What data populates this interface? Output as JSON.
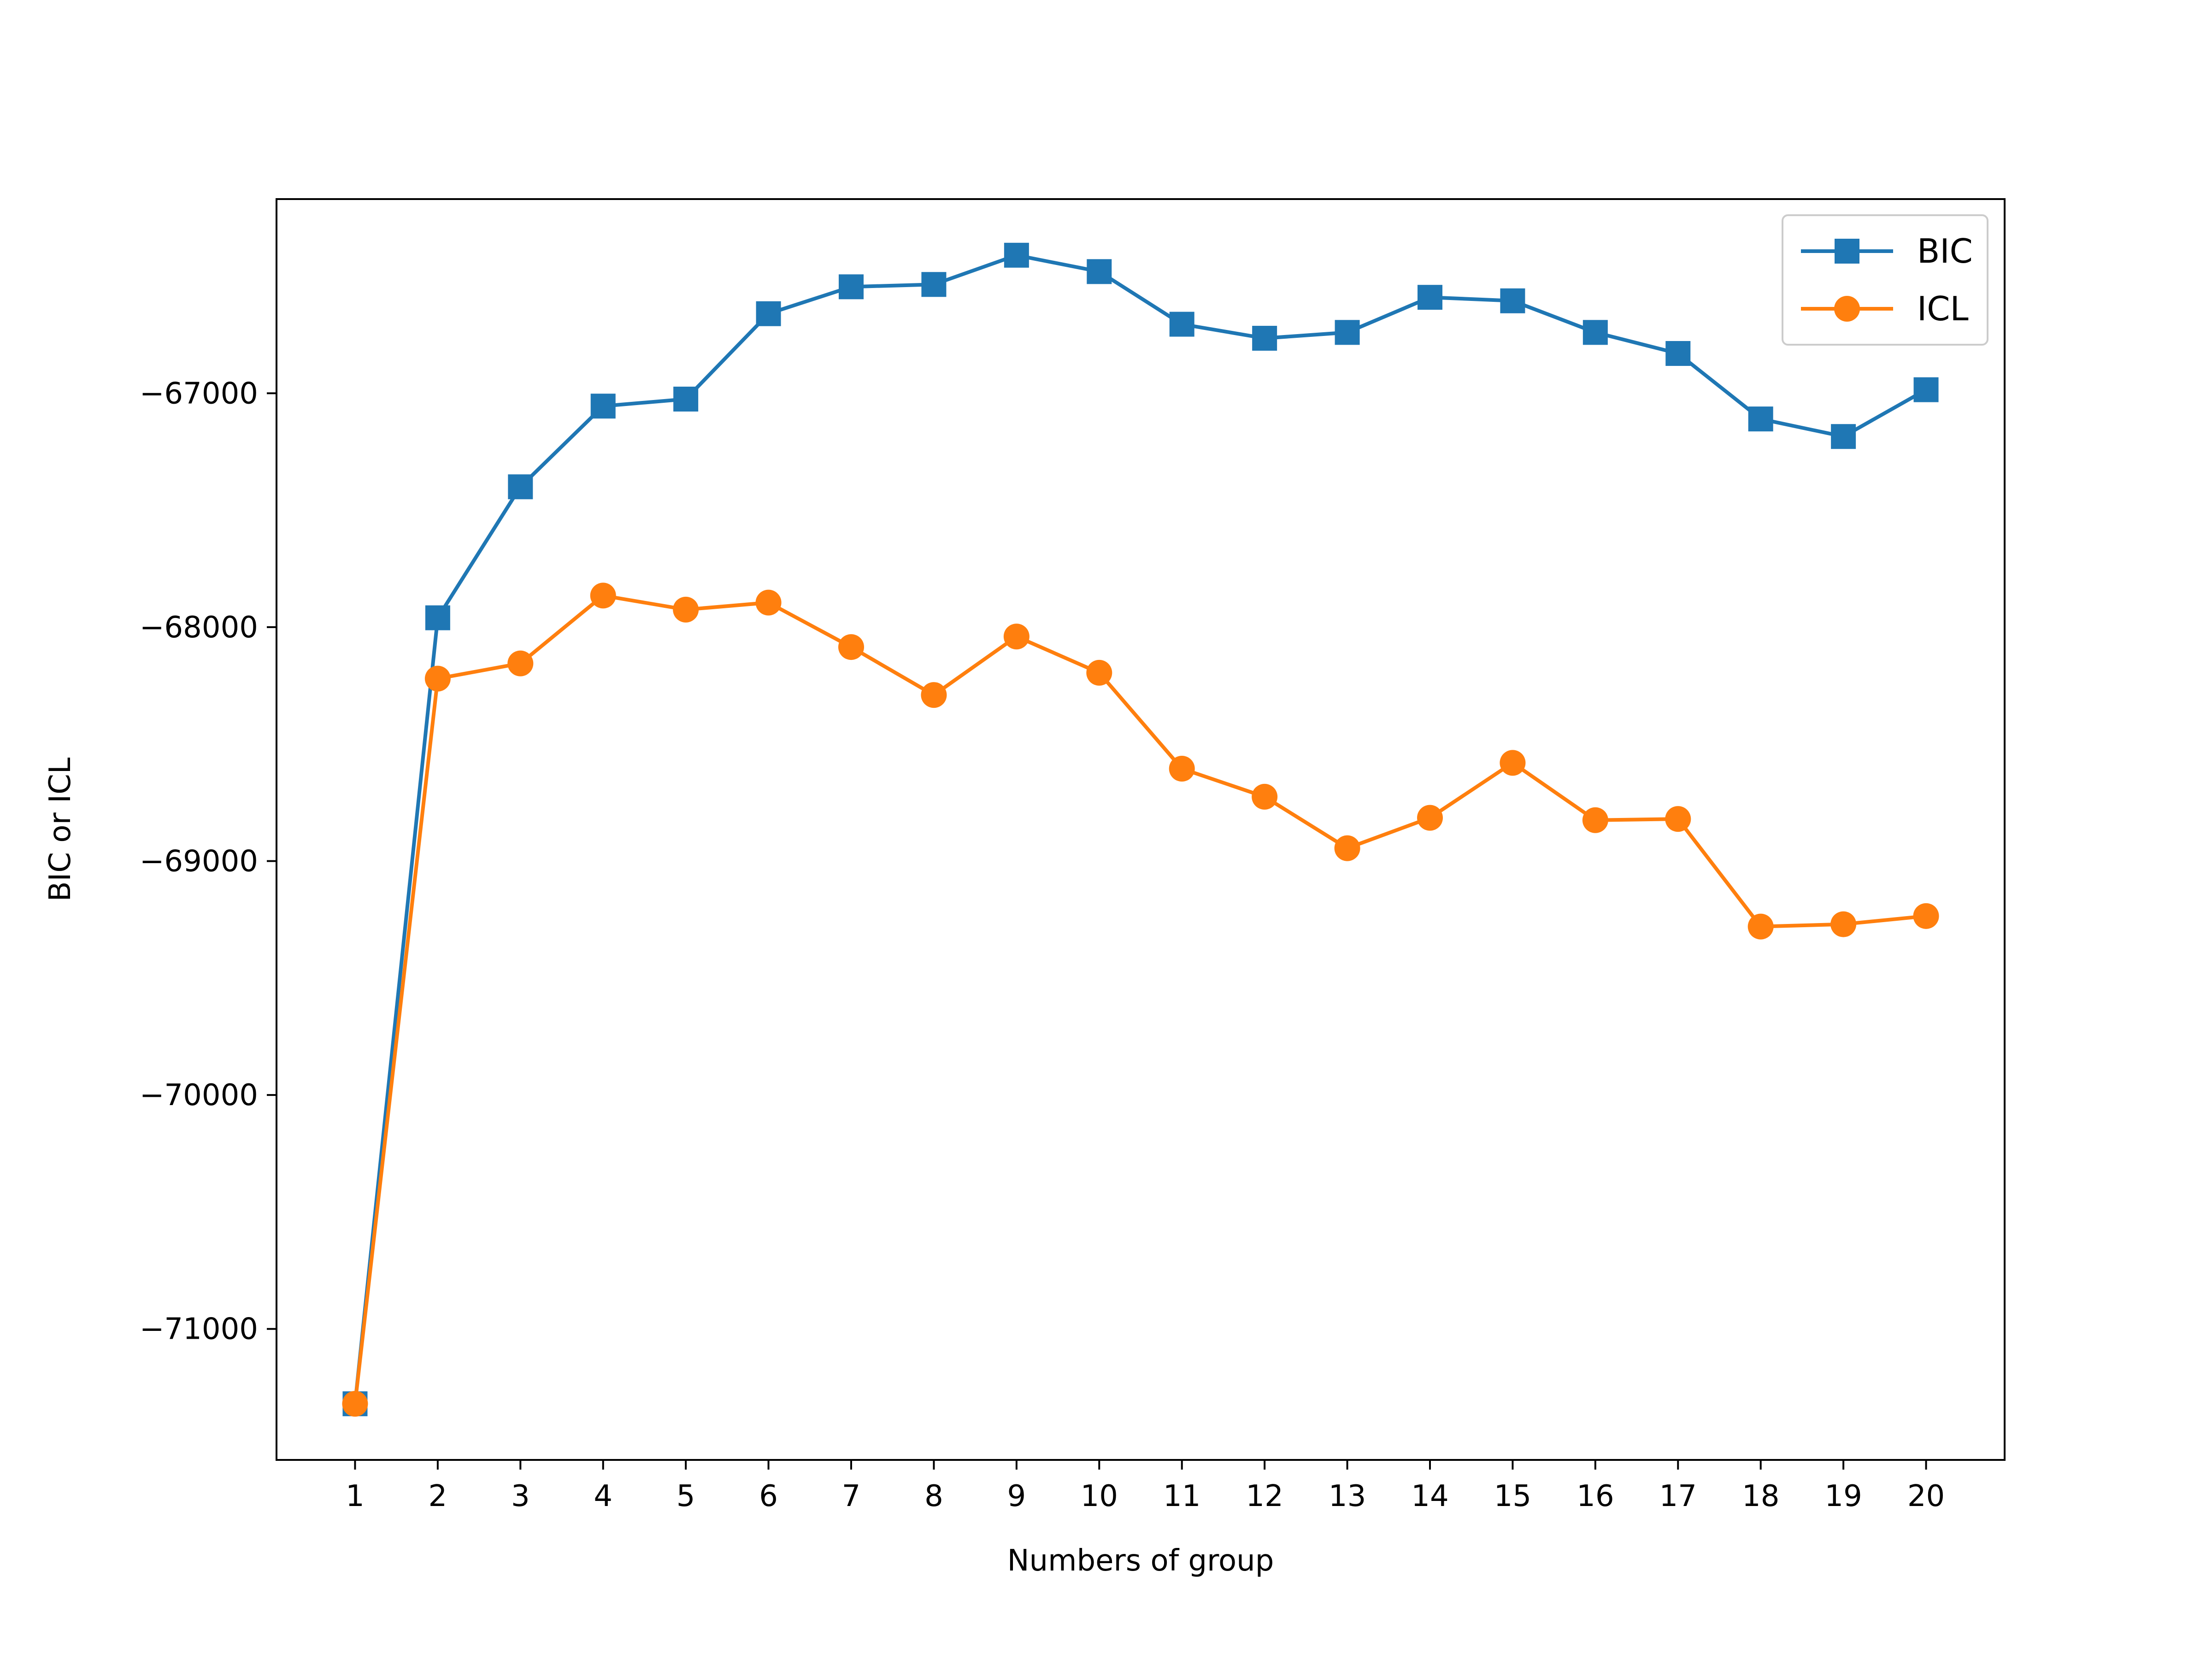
{
  "chart_data": {
    "type": "line",
    "title": "",
    "xlabel": "Numbers of group",
    "ylabel": "BIC or ICL",
    "x": [
      1,
      2,
      3,
      4,
      5,
      6,
      7,
      8,
      9,
      10,
      11,
      12,
      13,
      14,
      15,
      16,
      17,
      18,
      19,
      20
    ],
    "xticks": [
      "1",
      "2",
      "3",
      "4",
      "5",
      "6",
      "7",
      "8",
      "9",
      "10",
      "11",
      "12",
      "13",
      "14",
      "15",
      "16",
      "17",
      "18",
      "19",
      "20"
    ],
    "xlim": [
      0.05,
      20.95
    ],
    "ylim": [
      -71560,
      -66170
    ],
    "yticks": [
      -71000,
      -70000,
      -69000,
      -68000,
      -67000
    ],
    "ytick_labels": [
      "−71000",
      "−70000",
      "−69000",
      "−68000",
      "−67000"
    ],
    "grid": false,
    "legend_position": "top-right",
    "series": [
      {
        "name": "BIC",
        "color": "#1f77b4",
        "marker": "square",
        "values": [
          -71320,
          -67960,
          -67400,
          -67055,
          -67025,
          -66660,
          -66545,
          -66535,
          -66410,
          -66480,
          -66705,
          -66765,
          -66740,
          -66590,
          -66605,
          -66740,
          -66830,
          -67110,
          -67185,
          -66985
        ]
      },
      {
        "name": "ICL",
        "color": "#ff7f0e",
        "marker": "circle",
        "values": [
          -71320,
          -68220,
          -68155,
          -67865,
          -67925,
          -67895,
          -68085,
          -68290,
          -68040,
          -68195,
          -68605,
          -68725,
          -68945,
          -68815,
          -68580,
          -68825,
          -68820,
          -69280,
          -69270,
          -69235
        ]
      }
    ]
  }
}
